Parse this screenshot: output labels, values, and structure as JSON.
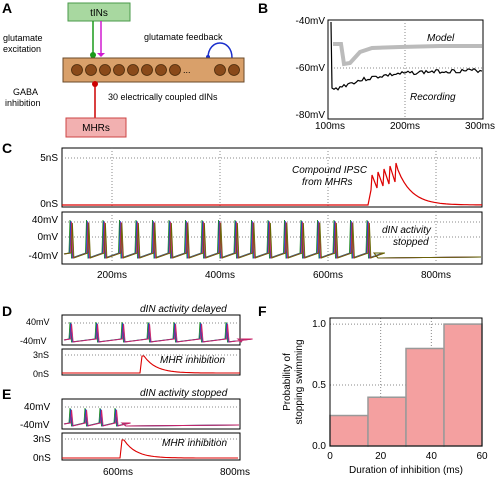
{
  "panels": {
    "a": {
      "label": "A",
      "tins": "tINs",
      "glut_exc_1": "glutamate",
      "glut_exc_2": "excitation",
      "glut_fb": "glutamate feedback",
      "ellipsis": "...",
      "gaba_1": "GABA",
      "gaba_2": "inhibition",
      "dins": "30 electrically coupled dINs",
      "mhrs": "MHRs",
      "colors": {
        "tins_box": "#a8d8a0",
        "mhrs_box": "#f2b0b0",
        "dins_bar": "#d9a06a",
        "neuron": "#8a4a1a",
        "feedback_arc": "#1a2fcc",
        "excite_green": "#1a9a1a",
        "excite_pink": "#d01ad0",
        "inhib_red": "#cc0000"
      }
    },
    "b": {
      "label": "B",
      "y_ticks": [
        "-40mV",
        "-60mV",
        "-80mV"
      ],
      "x_ticks": [
        "100ms",
        "200ms",
        "300ms"
      ],
      "model_label": "Model",
      "recording_label": "Recording",
      "colors": {
        "model": "#bbbbbb",
        "recording": "#000000"
      }
    },
    "c": {
      "label": "C",
      "top_y_ticks": [
        "5nS",
        "0nS"
      ],
      "ipsc_label_1": "Compound IPSC",
      "ipsc_label_2": "from MHRs",
      "bottom_y_ticks": [
        "40mV",
        "0mV",
        "-40mV"
      ],
      "activity_label_1": "dIN activity",
      "activity_label_2": "stopped",
      "x_ticks": [
        "200ms",
        "400ms",
        "600ms",
        "800ms"
      ],
      "colors": {
        "ipsc": "#dd0000",
        "traces": [
          "#1a8a1a",
          "#2244cc",
          "#cc2266",
          "#666600"
        ]
      }
    },
    "d": {
      "label": "D",
      "title": "dIN activity delayed",
      "v_ticks": [
        "40mV",
        "-40mV"
      ],
      "g_ticks": [
        "3nS",
        "0nS"
      ],
      "inhibition_label": "MHR inhibition"
    },
    "e": {
      "label": "E",
      "title": "dIN activity stopped",
      "v_ticks": [
        "40mV",
        "-40mV"
      ],
      "g_ticks": [
        "3nS",
        "0nS"
      ],
      "inhibition_label": "MHR inhibition",
      "x_ticks": [
        "600ms",
        "800ms"
      ]
    },
    "f": {
      "label": "F",
      "ylabel_1": "Probability of",
      "ylabel_2": "stopping swimming",
      "xlabel": "Duration of inhibition (ms)",
      "y_ticks": [
        "0.0",
        "0.5",
        "1.0"
      ],
      "x_ticks": [
        "0",
        "20",
        "40",
        "60"
      ],
      "colors": {
        "bar_fill": "#f4a0a0",
        "bar_edge": "#999999"
      }
    }
  },
  "chart_data": [
    {
      "type": "bar",
      "panel": "F",
      "xlabel": "Duration of inhibition (ms)",
      "ylabel": "Probability of stopping swimming",
      "xlim": [
        0,
        60
      ],
      "ylim": [
        0,
        1.05
      ],
      "bin_edges": [
        0,
        15,
        30,
        45,
        60
      ],
      "values": [
        0.25,
        0.4,
        0.8,
        1.0
      ]
    }
  ]
}
